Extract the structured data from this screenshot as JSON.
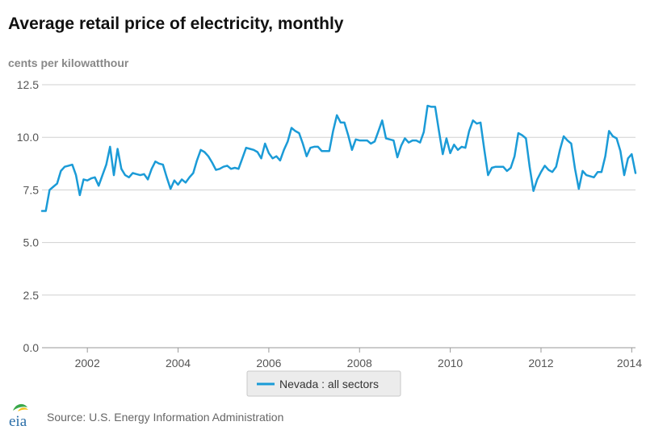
{
  "page": {
    "source": "Source: U.S. Energy Information Administration",
    "logo_text": "eia"
  },
  "colors": {
    "line": "#1b9bd7",
    "grid": "#d0d0d0",
    "axis_text": "#555555",
    "legend_bg": "#ececec",
    "legend_border": "#c8c8c8",
    "logo_text": "#2a6ea8",
    "logo_leaf_green": "#3aa84a",
    "logo_leaf_yellow": "#f2c21b"
  },
  "chart_data": {
    "type": "line",
    "title": "Average retail price of electricity, monthly",
    "ylabel": "cents per kilowatthour",
    "xlabel": "",
    "ylim": [
      0,
      12.5
    ],
    "xlim": [
      2001.0,
      2014.083
    ],
    "yticks": [
      "0.0",
      "2.5",
      "5.0",
      "7.5",
      "10.0",
      "12.5"
    ],
    "xticks": [
      "2002",
      "2004",
      "2006",
      "2008",
      "2010",
      "2012",
      "2014"
    ],
    "grid": true,
    "legend_position": "bottom",
    "series": [
      {
        "name": "Nevada : all sectors",
        "start": "2001-01",
        "values": [
          6.5,
          6.5,
          7.5,
          7.65,
          7.8,
          8.4,
          8.6,
          8.65,
          8.7,
          8.2,
          7.25,
          8.0,
          7.95,
          8.05,
          8.1,
          7.7,
          8.2,
          8.7,
          9.55,
          8.2,
          9.45,
          8.5,
          8.2,
          8.1,
          8.3,
          8.25,
          8.2,
          8.25,
          8.0,
          8.5,
          8.85,
          8.75,
          8.7,
          8.1,
          7.55,
          7.95,
          7.75,
          8.0,
          7.85,
          8.1,
          8.3,
          8.9,
          9.4,
          9.3,
          9.1,
          8.8,
          8.45,
          8.5,
          8.6,
          8.65,
          8.5,
          8.55,
          8.5,
          9.0,
          9.5,
          9.45,
          9.4,
          9.3,
          9.0,
          9.7,
          9.25,
          9.0,
          9.1,
          8.9,
          9.4,
          9.8,
          10.45,
          10.3,
          10.2,
          9.7,
          9.1,
          9.5,
          9.55,
          9.55,
          9.35,
          9.35,
          9.35,
          10.3,
          11.05,
          10.7,
          10.7,
          10.1,
          9.4,
          9.9,
          9.85,
          9.85,
          9.85,
          9.7,
          9.8,
          10.3,
          10.8,
          9.95,
          9.9,
          9.85,
          9.05,
          9.6,
          9.95,
          9.75,
          9.85,
          9.85,
          9.75,
          10.25,
          11.5,
          11.45,
          11.45,
          10.3,
          9.2,
          9.95,
          9.25,
          9.65,
          9.4,
          9.55,
          9.5,
          10.3,
          10.8,
          10.65,
          10.7,
          9.4,
          8.2,
          8.55,
          8.6,
          8.6,
          8.6,
          8.4,
          8.55,
          9.1,
          10.2,
          10.1,
          9.95,
          8.6,
          7.45,
          8.0,
          8.35,
          8.65,
          8.45,
          8.35,
          8.6,
          9.4,
          10.05,
          9.85,
          9.7,
          8.5,
          7.55,
          8.4,
          8.2,
          8.15,
          8.1,
          8.35,
          8.35,
          9.1,
          10.3,
          10.05,
          9.95,
          9.35,
          8.2,
          9.0,
          9.2,
          8.3
        ]
      }
    ]
  }
}
